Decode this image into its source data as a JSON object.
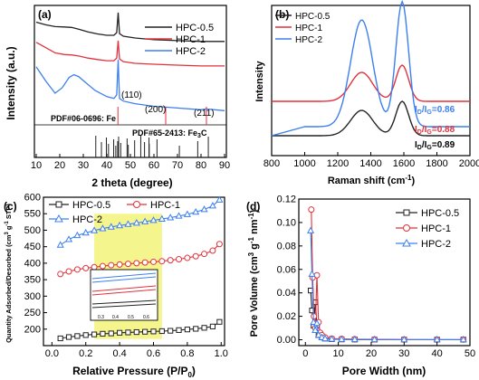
{
  "chart_data": [
    {
      "panel": "(a)",
      "type": "line",
      "xlabel": "2 theta (degree)",
      "ylabel": "Intensity (a.u.)",
      "xlim": [
        10,
        90
      ],
      "x_ticks": [
        "10",
        "20",
        "30",
        "40",
        "50",
        "60",
        "70",
        "80",
        "90"
      ],
      "legend_position": "top-right",
      "series": [
        {
          "name": "HPC-0.5",
          "color": "#222222",
          "x": [
            10,
            14,
            18,
            22,
            25,
            28,
            32,
            36,
            40,
            43,
            44.2,
            44.8,
            45.4,
            47,
            52,
            60,
            70,
            80,
            90
          ],
          "y": [
            8.05,
            7.9,
            7.8,
            7.78,
            7.75,
            7.65,
            7.5,
            7.38,
            7.3,
            7.3,
            7.45,
            8.6,
            7.4,
            7.25,
            7.15,
            7.05,
            7.0,
            6.95,
            6.95
          ]
        },
        {
          "name": "HPC-1",
          "color": "#e0323c",
          "x": [
            10,
            14,
            18,
            22,
            25,
            28,
            32,
            36,
            40,
            43,
            44.2,
            44.8,
            45.4,
            47,
            52,
            60,
            70,
            80,
            90
          ],
          "y": [
            6.9,
            6.6,
            6.3,
            6.2,
            6.18,
            6.12,
            6.0,
            5.92,
            5.85,
            5.85,
            6.0,
            7.0,
            5.95,
            5.8,
            5.7,
            5.65,
            5.6,
            5.55,
            5.55
          ]
        },
        {
          "name": "HPC-2",
          "color": "#3d7ff0",
          "x": [
            10,
            14,
            18,
            21,
            24,
            26,
            28,
            31,
            35,
            40,
            43,
            44.2,
            44.8,
            45.4,
            47,
            52,
            60,
            65,
            70,
            80,
            82,
            90
          ],
          "y": [
            5.5,
            4.7,
            4.0,
            4.3,
            4.9,
            5.05,
            4.95,
            4.6,
            4.15,
            3.8,
            3.7,
            3.9,
            5.9,
            3.7,
            3.55,
            3.4,
            3.25,
            3.2,
            3.15,
            3.05,
            3.1,
            3.0
          ]
        }
      ],
      "peak_labels": [
        {
          "text": "(110)",
          "x": 44.8
        },
        {
          "text": "(200)",
          "x": 65
        },
        {
          "text": "(211)",
          "x": 82
        }
      ],
      "reference_patterns": [
        {
          "label": "PDF#06-0696: Fe",
          "color": "#e0323c",
          "peaks": [
            44.7,
            65.0,
            82.3
          ]
        },
        {
          "label": "PDF#65-2413: Fe3C",
          "color": "#222222",
          "peaks": [
            35.3,
            37.7,
            39.8,
            40.7,
            42.9,
            43.8,
            44.6,
            45.0,
            45.9,
            48.6,
            49.1,
            51.8,
            54.4,
            56.0,
            57.9,
            58.0,
            61.3,
            70.8,
            78.6,
            83.1
          ]
        }
      ]
    },
    {
      "panel": "(b)",
      "type": "line",
      "xlabel": "Raman shift (cm-1)",
      "ylabel": "Intensity",
      "xlim": [
        800,
        2000
      ],
      "x_ticks": [
        "800",
        "1000",
        "1200",
        "1400",
        "1600",
        "1800",
        "2000"
      ],
      "legend_position": "top-left",
      "series": [
        {
          "name": "HPC-0.5",
          "color": "#222222"
        },
        {
          "name": "HPC-1",
          "color": "#e0323c"
        },
        {
          "name": "HPC-2",
          "color": "#3d7ff0"
        }
      ],
      "ratio_labels": [
        {
          "text": "ID/IG=0.86",
          "color": "#3d7ff0",
          "value": 0.86
        },
        {
          "text": "ID/IG=0.88",
          "color": "#e0323c",
          "value": 0.88
        },
        {
          "text": "ID/IG=0.89",
          "color": "#222222",
          "value": 0.89
        }
      ]
    },
    {
      "panel": "(c)",
      "type": "line",
      "xlabel": "Relative Pressure (P/P0)",
      "ylabel": "Quantity Adsorbed/Desorbed (cm3 g-1 STP)",
      "xlim": [
        0,
        1.0
      ],
      "ylim": [
        150,
        600
      ],
      "x_ticks": [
        "0.0",
        "0.2",
        "0.4",
        "0.6",
        "0.8",
        "1.0"
      ],
      "y_ticks": [
        "200",
        "250",
        "300",
        "350",
        "400",
        "450",
        "500",
        "550",
        "600"
      ],
      "legend_position": "top",
      "highlight_range": [
        0.25,
        0.65
      ],
      "inset_ticks": [
        "0.3",
        "0.4",
        "0.5",
        "0.6"
      ],
      "series": [
        {
          "name": "HPC-0.5",
          "color": "#222222",
          "marker": "square",
          "x": [
            0.05,
            0.1,
            0.15,
            0.2,
            0.25,
            0.3,
            0.35,
            0.4,
            0.45,
            0.5,
            0.55,
            0.6,
            0.65,
            0.7,
            0.75,
            0.8,
            0.85,
            0.9,
            0.95,
            0.99
          ],
          "y": [
            172,
            176,
            179,
            182,
            184,
            186,
            187,
            189,
            190,
            191,
            192,
            193,
            194,
            195,
            197,
            199,
            201,
            204,
            208,
            222
          ]
        },
        {
          "name": "HPC-1",
          "color": "#e0323c",
          "marker": "circle",
          "x": [
            0.05,
            0.1,
            0.15,
            0.2,
            0.25,
            0.3,
            0.35,
            0.4,
            0.45,
            0.5,
            0.55,
            0.6,
            0.65,
            0.7,
            0.75,
            0.8,
            0.85,
            0.9,
            0.95,
            0.99
          ],
          "y": [
            367,
            375,
            381,
            385,
            388,
            391,
            394,
            396,
            398,
            400,
            402,
            404,
            406,
            409,
            412,
            416,
            421,
            428,
            438,
            458
          ]
        },
        {
          "name": "HPC-2",
          "color": "#3d7ff0",
          "marker": "triangle",
          "x": [
            0.05,
            0.1,
            0.15,
            0.2,
            0.25,
            0.3,
            0.35,
            0.4,
            0.45,
            0.5,
            0.55,
            0.6,
            0.65,
            0.7,
            0.75,
            0.8,
            0.85,
            0.9,
            0.95,
            0.99
          ],
          "y": [
            455,
            472,
            484,
            492,
            499,
            505,
            510,
            514,
            518,
            522,
            526,
            530,
            534,
            538,
            543,
            548,
            555,
            563,
            574,
            592
          ]
        }
      ]
    },
    {
      "panel": "(d)",
      "type": "line",
      "xlabel": "Pore Width (nm)",
      "ylabel": "Pore Volume (cm3 g-1 nm-1)",
      "xlim": [
        0,
        50
      ],
      "ylim": [
        -0.005,
        0.12
      ],
      "x_ticks": [
        "0",
        "10",
        "20",
        "30",
        "40",
        "50"
      ],
      "y_ticks": [
        "0.00",
        "0.02",
        "0.04",
        "0.06",
        "0.08",
        "0.10",
        "0.12"
      ],
      "legend_position": "top-right",
      "series": [
        {
          "name": "HPC-0.5",
          "color": "#222222",
          "marker": "square",
          "x": [
            1.6,
            2.0,
            2.5,
            3.0,
            3.5,
            4.0,
            5,
            6,
            8,
            11,
            15,
            21,
            30,
            40,
            48
          ],
          "y": [
            0.042,
            0.025,
            0.012,
            0.032,
            0.012,
            0.004,
            0.002,
            0.001,
            0.0005,
            0.0003,
            0.0002,
            0.0001,
            0.0001,
            0.0001,
            0.0001
          ]
        },
        {
          "name": "HPC-1",
          "color": "#e0323c",
          "marker": "circle",
          "x": [
            1.8,
            2.2,
            2.6,
            3.0,
            3.5,
            4.0,
            4.5,
            5,
            6,
            8,
            11,
            15,
            21,
            30,
            40,
            48
          ],
          "y": [
            0.111,
            0.053,
            0.02,
            0.01,
            0.055,
            0.015,
            0.006,
            0.004,
            0.002,
            0.001,
            0.0008,
            0.0005,
            0.0003,
            0.0002,
            0.0001,
            0.0001
          ]
        },
        {
          "name": "HPC-2",
          "color": "#3d7ff0",
          "marker": "triangle",
          "x": [
            1.6,
            2.0,
            2.5,
            3.0,
            3.5,
            4.0,
            5,
            6,
            8,
            11,
            15,
            21,
            30,
            40,
            48
          ],
          "y": [
            0.093,
            0.056,
            0.015,
            0.008,
            0.014,
            0.004,
            0.002,
            0.001,
            0.0006,
            0.0004,
            0.0003,
            0.0002,
            0.0001,
            0.0001,
            0.0001
          ]
        }
      ]
    }
  ]
}
